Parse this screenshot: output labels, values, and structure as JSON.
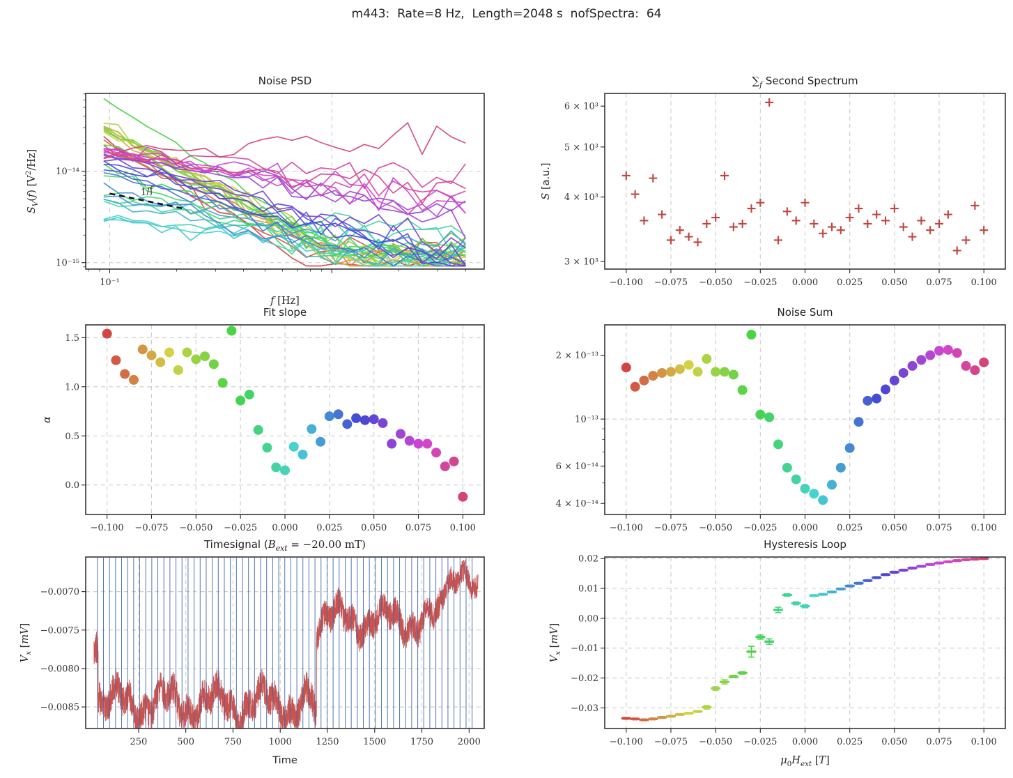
{
  "suptitle": "m443:  Rate=8 Hz,  Length=2048 s  nofSpectra:  64",
  "colors": {
    "scatter_red": "#c24440",
    "trace_red": "#c9534e",
    "vline_blue": "#4066ab",
    "grid": "#cbcbcb",
    "annotation": "#111111",
    "rainbow_hue_span": 338
  },
  "field_values": [
    -0.1,
    -0.095,
    -0.09,
    -0.085,
    -0.08,
    -0.075,
    -0.07,
    -0.065,
    -0.06,
    -0.055,
    -0.05,
    -0.045,
    -0.04,
    -0.035,
    -0.03,
    -0.025,
    -0.02,
    -0.015,
    -0.01,
    -0.005,
    0.0,
    0.005,
    0.01,
    0.015,
    0.02,
    0.025,
    0.03,
    0.035,
    0.04,
    0.045,
    0.05,
    0.055,
    0.06,
    0.065,
    0.07,
    0.075,
    0.08,
    0.085,
    0.09,
    0.095,
    0.1
  ],
  "field_axis": {
    "values": [
      -0.1,
      -0.075,
      -0.05,
      -0.025,
      0.0,
      0.025,
      0.05,
      0.075,
      0.1
    ],
    "labels": [
      "−0.100",
      "−0.075",
      "−0.050",
      "−0.025",
      "0.000",
      "0.025",
      "0.050",
      "0.075",
      "0.100"
    ]
  },
  "chart_data": [
    {
      "id": "noise_psd",
      "type": "psd_lines",
      "title": [
        {
          "t": "Noise PSD"
        }
      ],
      "xlabel": [
        {
          "t": "f",
          "i": true,
          "f": "serif"
        },
        {
          "t": " [Hz]",
          "f": "serif"
        }
      ],
      "ylabel": [
        {
          "t": "S",
          "i": true,
          "f": "serif"
        },
        {
          "t": "V",
          "sub": true,
          "i": true,
          "f": "serif"
        },
        {
          "t": "(",
          "f": "serif"
        },
        {
          "t": "f",
          "i": true,
          "f": "serif"
        },
        {
          "t": ") [V",
          "f": "serif"
        },
        {
          "t": "2",
          "sup": true,
          "f": "serif"
        },
        {
          "t": "/Hz]",
          "f": "serif"
        }
      ],
      "xscale": "log",
      "yscale": "log",
      "xlim": [
        0.078,
        4.85
      ],
      "ylim": [
        8.5e-16,
        7.1e-14
      ],
      "xticks": [
        {
          "v": 0.1,
          "label": "10⁻¹",
          "grid": true
        },
        {
          "v": 1.0,
          "label": "",
          "grid": true
        }
      ],
      "yticks": [
        {
          "v": 1e-14,
          "label": "10⁻¹⁴",
          "grid": true
        },
        {
          "v": 1e-15,
          "label": "10⁻¹⁵",
          "grid": true
        }
      ],
      "grid": {
        "x": false,
        "y": false
      },
      "model": {
        "f_min": 0.094,
        "f_max": 4.0,
        "n_points": 26,
        "noise_floor": 1.1e-15
      },
      "s0": [
        2.4e-14,
        1.8e-14,
        2e-14,
        1.8e-14,
        3e-14,
        2.8e-14,
        3e-14,
        3.2e-14,
        2.6e-14,
        3.3e-14,
        2.8e-14,
        3e-14,
        2.8e-14,
        2e-14,
        6.3e-14,
        1.1e-14,
        1e-14,
        6e-15,
        5e-15,
        4.5e-15,
        3e-15,
        3.2e-15,
        3e-15,
        5e-15,
        5.5e-15,
        7e-15,
        9e-15,
        1e-14,
        1.2e-14,
        1.3e-14,
        1.4e-14,
        1.5e-14,
        1.6e-14,
        1.7e-14,
        1.7e-14,
        1.8e-14,
        1.8e-14,
        1.7e-14,
        1.6e-14,
        1.5e-14,
        1.6e-14
      ],
      "alpha": [
        1.54,
        1.27,
        1.13,
        1.07,
        1.38,
        1.32,
        1.25,
        1.35,
        1.17,
        1.35,
        1.28,
        1.31,
        1.23,
        1.04,
        1.57,
        0.86,
        0.92,
        0.56,
        0.38,
        0.18,
        0.15,
        0.39,
        0.31,
        0.57,
        0.44,
        0.7,
        0.72,
        0.62,
        0.68,
        0.66,
        0.67,
        0.63,
        0.42,
        0.52,
        0.45,
        0.42,
        0.42,
        0.33,
        0.19,
        0.24,
        -0.12
      ],
      "annotation": {
        "label": "1/f",
        "x1": 0.1,
        "y1": 5.7e-15,
        "x2": 0.215,
        "y2": 3.9e-15,
        "label_x": 0.148,
        "label_y": 5.6e-15
      }
    },
    {
      "id": "second_spectrum",
      "type": "scatter",
      "marker": "plus",
      "color": "#c24440",
      "title": [
        {
          "t": "∑",
          "f": "serif"
        },
        {
          "t": "f",
          "sub": true,
          "i": true,
          "f": "serif"
        },
        {
          "t": "  Second Spectrum"
        }
      ],
      "ylabel": [
        {
          "t": "S",
          "i": true,
          "f": "serif"
        },
        {
          "t": " [a.u.]"
        }
      ],
      "xscale": "linear",
      "yscale": "log",
      "xlim": [
        -0.112,
        0.112
      ],
      "ylim": [
        2900,
        6350
      ],
      "xticks": "field",
      "yticks": [
        {
          "v": 6000,
          "label": "6 × 10³"
        },
        {
          "v": 5000,
          "label": "5 × 10³"
        },
        {
          "v": 4000,
          "label": "4 × 10³"
        },
        {
          "v": 3000,
          "label": "3 × 10³"
        }
      ],
      "grid": {
        "x": true,
        "y": false
      },
      "x": "field",
      "y": [
        4400,
        4050,
        3600,
        4350,
        3700,
        3300,
        3450,
        3350,
        3270,
        3550,
        3650,
        4400,
        3500,
        3550,
        3800,
        3900,
        6100,
        3300,
        3750,
        3600,
        3900,
        3550,
        3400,
        3500,
        3450,
        3650,
        3800,
        3550,
        3700,
        3600,
        3800,
        3500,
        3350,
        3600,
        3450,
        3550,
        3700,
        3150,
        3300,
        3850,
        3450
      ]
    },
    {
      "id": "fit_slope",
      "type": "scatter",
      "marker": "dot",
      "rainbow": true,
      "title": [
        {
          "t": "Fit slope"
        }
      ],
      "ylabel": [
        {
          "t": "α",
          "i": true,
          "f": "serif"
        }
      ],
      "xscale": "linear",
      "yscale": "linear",
      "xlim": [
        -0.112,
        0.112
      ],
      "ylim": [
        -0.3,
        1.63
      ],
      "xticks": "field",
      "yticks": [
        {
          "v": 1.5,
          "label": "1.5"
        },
        {
          "v": 1.0,
          "label": "1.0"
        },
        {
          "v": 0.5,
          "label": "0.5"
        },
        {
          "v": 0.0,
          "label": "0.0"
        }
      ],
      "grid": {
        "x": true,
        "y": true
      },
      "x": "field",
      "y": [
        1.54,
        1.27,
        1.13,
        1.07,
        1.38,
        1.32,
        1.25,
        1.35,
        1.17,
        1.35,
        1.28,
        1.31,
        1.23,
        1.04,
        1.57,
        0.86,
        0.92,
        0.56,
        0.38,
        0.18,
        0.15,
        0.39,
        0.31,
        0.57,
        0.44,
        0.7,
        0.72,
        0.62,
        0.68,
        0.66,
        0.67,
        0.63,
        0.42,
        0.52,
        0.45,
        0.42,
        0.42,
        0.33,
        0.19,
        0.24,
        -0.12
      ]
    },
    {
      "id": "noise_sum",
      "type": "scatter",
      "marker": "dot",
      "rainbow": true,
      "title": [
        {
          "t": "Noise Sum"
        }
      ],
      "xscale": "linear",
      "yscale": "log",
      "xlim": [
        -0.112,
        0.112
      ],
      "ylim": [
        3.55e-14,
        2.78e-13
      ],
      "xticks": "field",
      "yticks": [
        {
          "v": 2e-13,
          "label": "2 × 10⁻¹³"
        },
        {
          "v": 1e-13,
          "label": "10⁻¹³",
          "grid": true
        },
        {
          "v": 6e-14,
          "label": "6 × 10⁻¹⁴"
        },
        {
          "v": 4e-14,
          "label": "4 × 10⁻¹⁴"
        }
      ],
      "grid": {
        "x": true,
        "y": false
      },
      "x": "field",
      "y": [
        1.75e-13,
        1.42e-13,
        1.52e-13,
        1.6e-13,
        1.65e-13,
        1.67e-13,
        1.72e-13,
        1.8e-13,
        1.67e-13,
        1.92e-13,
        1.67e-13,
        1.67e-13,
        1.62e-13,
        1.37e-13,
        2.5e-13,
        1.05e-13,
        1.02e-13,
        7.6e-14,
        5.9e-14,
        5.2e-14,
        4.7e-14,
        4.45e-14,
        4.15e-14,
        4.9e-14,
        5.9e-14,
        7.3e-14,
        9.7e-14,
        1.22e-13,
        1.25e-13,
        1.38e-13,
        1.52e-13,
        1.65e-13,
        1.78e-13,
        1.9e-13,
        2e-13,
        2.1e-13,
        2.12e-13,
        2.05e-13,
        1.78e-13,
        1.7e-13,
        1.85e-13
      ]
    },
    {
      "id": "timesignal",
      "type": "noisy_line",
      "color": "#c9534e",
      "title": [
        {
          "t": "Timesignal ("
        },
        {
          "t": "B",
          "i": true,
          "f": "serif"
        },
        {
          "t": "ext",
          "sub": true,
          "i": true,
          "f": "serif"
        },
        {
          "t": " = −20.00 mT)",
          "f": "serif"
        }
      ],
      "xlabel": [
        {
          "t": "Time"
        }
      ],
      "ylabel": [
        {
          "t": "V",
          "i": true,
          "f": "serif"
        },
        {
          "t": "x",
          "sub": true,
          "i": true,
          "f": "serif"
        },
        {
          "t": " [",
          "f": "serif"
        },
        {
          "t": "mV",
          "i": true,
          "f": "serif"
        },
        {
          "t": "]",
          "f": "serif"
        }
      ],
      "xscale": "linear",
      "yscale": "linear",
      "xlim": [
        -30,
        2080
      ],
      "ylim": [
        -0.00878,
        -0.00655
      ],
      "xticks": [
        {
          "v": 250,
          "label": "250"
        },
        {
          "v": 500,
          "label": "500"
        },
        {
          "v": 750,
          "label": "750"
        },
        {
          "v": 1000,
          "label": "1000"
        },
        {
          "v": 1250,
          "label": "1250"
        },
        {
          "v": 1500,
          "label": "1500"
        },
        {
          "v": 1750,
          "label": "1750"
        },
        {
          "v": 2000,
          "label": "2000"
        }
      ],
      "yticks": [
        {
          "v": -0.007,
          "label": "−0.0070"
        },
        {
          "v": -0.0075,
          "label": "−0.0075"
        },
        {
          "v": -0.008,
          "label": "−0.0080"
        },
        {
          "v": -0.0085,
          "label": "−0.0085"
        }
      ],
      "grid": {
        "x": true,
        "y": true
      },
      "segments": [
        {
          "t0": 14,
          "t1": 36,
          "mean": -0.00755,
          "amp": 0.00022
        },
        {
          "t0": 36,
          "t1": 46,
          "mean": -0.00862,
          "amp": 0.0002
        },
        {
          "t0": 46,
          "t1": 1170,
          "mean": -0.00845,
          "amp": 0.0002
        },
        {
          "t0": 1170,
          "t1": 1192,
          "mean": -0.0086,
          "amp": 0.00022
        },
        {
          "t0": 1192,
          "t1": 1845,
          "mean": -0.00737,
          "amp": 0.00018
        },
        {
          "t0": 1845,
          "t1": 2048,
          "mean": -0.00692,
          "amp": 0.00015
        }
      ],
      "vlines": {
        "start": 32,
        "step": 32,
        "end": 2016,
        "color": "#4066ab"
      }
    },
    {
      "id": "hysteresis",
      "type": "errorbar",
      "rainbow": true,
      "title": [
        {
          "t": "Hysteresis Loop"
        }
      ],
      "xlabel": [
        {
          "t": "μ",
          "i": true,
          "f": "serif"
        },
        {
          "t": "0",
          "sub": true,
          "f": "serif"
        },
        {
          "t": "H",
          "i": true,
          "f": "serif"
        },
        {
          "t": "ext",
          "sub": true,
          "i": true,
          "f": "serif"
        },
        {
          "t": " [",
          "f": "serif"
        },
        {
          "t": "T",
          "i": true,
          "f": "serif"
        },
        {
          "t": "]",
          "f": "serif"
        }
      ],
      "ylabel": [
        {
          "t": "V",
          "i": true,
          "f": "serif"
        },
        {
          "t": "x",
          "sub": true,
          "i": true,
          "f": "serif"
        },
        {
          "t": " [",
          "f": "serif"
        },
        {
          "t": "mV",
          "i": true,
          "f": "serif"
        },
        {
          "t": "]",
          "f": "serif"
        }
      ],
      "xscale": "linear",
      "yscale": "linear",
      "xlim": [
        -0.112,
        0.112
      ],
      "ylim": [
        -0.0369,
        0.0205
      ],
      "xticks": "field",
      "yticks": [
        {
          "v": 0.02,
          "label": "0.02"
        },
        {
          "v": 0.01,
          "label": "0.01"
        },
        {
          "v": 0.0,
          "label": "0.00"
        },
        {
          "v": -0.01,
          "label": "−0.01"
        },
        {
          "v": -0.02,
          "label": "−0.02"
        },
        {
          "v": -0.03,
          "label": "−0.03"
        }
      ],
      "grid": {
        "x": true,
        "y": true
      },
      "x": "field",
      "y": [
        -0.0335,
        -0.0337,
        -0.034,
        -0.0337,
        -0.0332,
        -0.0328,
        -0.0322,
        -0.0318,
        -0.0312,
        -0.0298,
        -0.0235,
        -0.0213,
        -0.0195,
        -0.0183,
        -0.0112,
        -0.0063,
        -0.0078,
        0.0028,
        0.0078,
        0.005,
        0.004,
        0.0076,
        0.008,
        0.0088,
        0.0098,
        0.0108,
        0.0117,
        0.0126,
        0.0136,
        0.0146,
        0.0154,
        0.0161,
        0.0168,
        0.0174,
        0.018,
        0.0185,
        0.0189,
        0.0193,
        0.0196,
        0.0198,
        0.02
      ],
      "yerr": [
        0.0003,
        0.0003,
        0.0003,
        0.0003,
        0.0003,
        0.0003,
        0.0003,
        0.0003,
        0.0003,
        0.0006,
        0.0006,
        0.0007,
        0.0004,
        0.0004,
        0.0018,
        0.0007,
        0.0009,
        0.0009,
        0.0004,
        0.0005,
        0.0005,
        0.0003,
        0.0003,
        0.0003,
        0.0003,
        0.0003,
        0.0003,
        0.0003,
        0.0003,
        0.0003,
        0.0003,
        0.0003,
        0.0003,
        0.0003,
        0.0003,
        0.0003,
        0.0003,
        0.0003,
        0.0003,
        0.0003,
        0.0003
      ]
    }
  ]
}
